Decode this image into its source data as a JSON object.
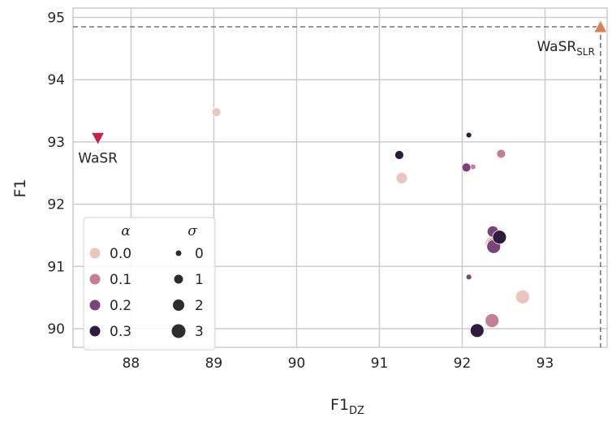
{
  "chart_data": {
    "type": "scatter",
    "xlabel": "F1",
    "xlabel_sub": "DZ",
    "ylabel": "F1",
    "x_ticks": [
      "88",
      "89",
      "90",
      "91",
      "92",
      "93"
    ],
    "y_ticks": [
      "90",
      "91",
      "92",
      "93",
      "94",
      "95"
    ],
    "xlim": [
      87.3,
      93.75
    ],
    "ylim": [
      89.7,
      95.15
    ],
    "grid": true,
    "background": "#ffffff",
    "grid_color": "#cccccc",
    "alpha_colors": {
      "0.0": "#ebc6bd",
      "0.1": "#c47f94",
      "0.2": "#7b4478",
      "0.3": "#2d1c3f"
    },
    "sigma_sizes": {
      "0": 3.5,
      "1": 5.5,
      "2": 7,
      "3": 8.5
    },
    "points": [
      {
        "x": 89.03,
        "y": 93.48,
        "alpha": "0.0",
        "sigma": "1"
      },
      {
        "x": 91.27,
        "y": 92.42,
        "alpha": "0.0",
        "sigma": "2"
      },
      {
        "x": 92.73,
        "y": 90.51,
        "alpha": "0.0",
        "sigma": "3"
      },
      {
        "x": 92.36,
        "y": 91.37,
        "alpha": "0.0",
        "sigma": "3"
      },
      {
        "x": 92.47,
        "y": 92.81,
        "alpha": "0.1",
        "sigma": "1"
      },
      {
        "x": 92.13,
        "y": 92.6,
        "alpha": "0.1",
        "sigma": "0"
      },
      {
        "x": 92.36,
        "y": 90.13,
        "alpha": "0.1",
        "sigma": "3"
      },
      {
        "x": 92.38,
        "y": 91.35,
        "alpha": "0.1",
        "sigma": "3"
      },
      {
        "x": 92.05,
        "y": 92.59,
        "alpha": "0.2",
        "sigma": "1"
      },
      {
        "x": 92.08,
        "y": 90.83,
        "alpha": "0.2",
        "sigma": "0"
      },
      {
        "x": 92.37,
        "y": 91.56,
        "alpha": "0.2",
        "sigma": "2"
      },
      {
        "x": 92.38,
        "y": 91.32,
        "alpha": "0.2",
        "sigma": "3"
      },
      {
        "x": 92.08,
        "y": 93.11,
        "alpha": "0.3",
        "sigma": "0"
      },
      {
        "x": 91.24,
        "y": 92.79,
        "alpha": "0.3",
        "sigma": "1"
      },
      {
        "x": 92.18,
        "y": 89.97,
        "alpha": "0.3",
        "sigma": "3"
      },
      {
        "x": 92.45,
        "y": 91.47,
        "alpha": "0.3",
        "sigma": "3"
      }
    ],
    "references": [
      {
        "name": "WaSR",
        "sub": "",
        "x": 87.6,
        "y": 93.06,
        "marker": "triangle-down",
        "color": "#c3224d",
        "label_position": "below"
      },
      {
        "name": "WaSR",
        "sub": "SLR",
        "x": 93.67,
        "y": 94.85,
        "marker": "triangle-up",
        "color": "#e07f50",
        "label_position": "below-left",
        "dashed_guides": true
      }
    ],
    "legend": {
      "position": "lower-left",
      "hue_title": "α",
      "size_title": "σ",
      "hue_entries": [
        "0.0",
        "0.1",
        "0.2",
        "0.3"
      ],
      "size_entries": [
        "0",
        "1",
        "2",
        "3"
      ],
      "size_entry_color": "#2d2d2d"
    }
  }
}
